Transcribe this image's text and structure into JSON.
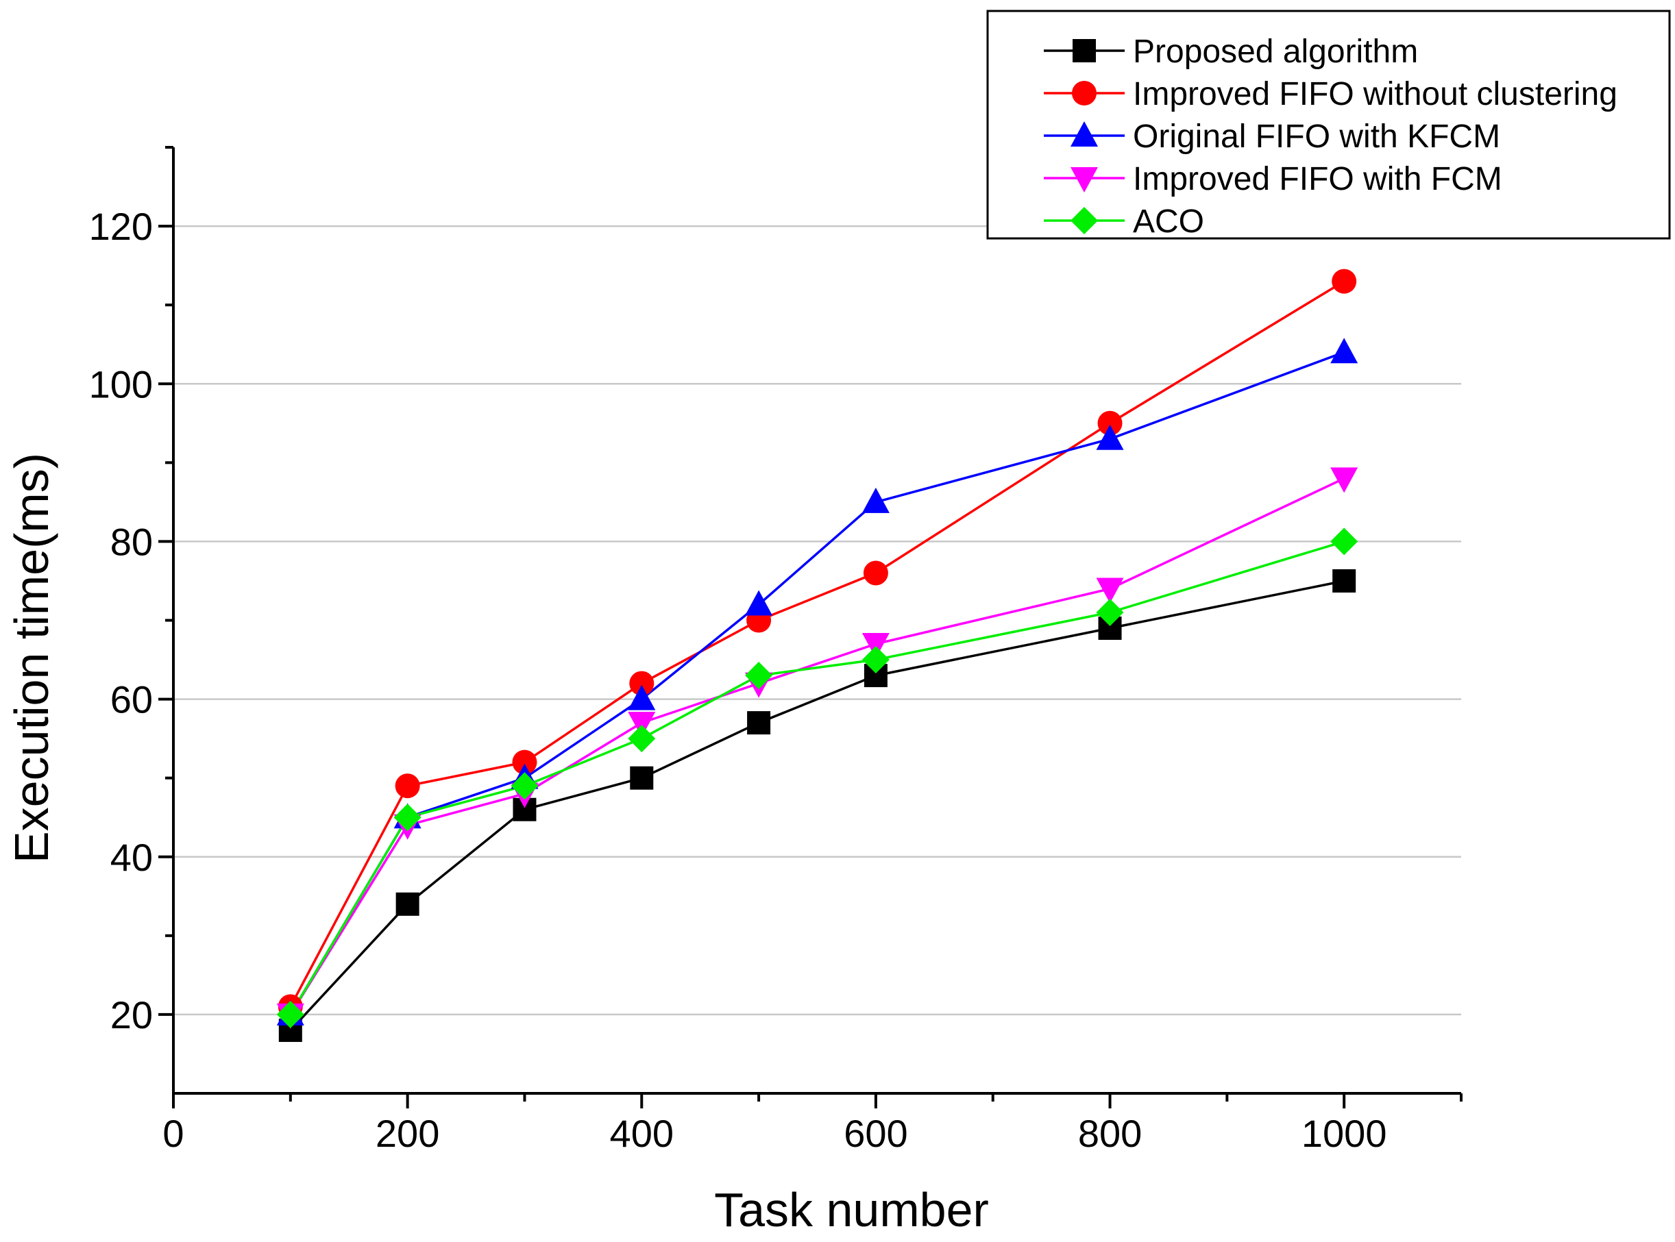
{
  "chart_data": {
    "type": "line",
    "title": "",
    "xlabel": "Task number",
    "ylabel": "Execution time(ms)",
    "xlim": [
      0,
      1100
    ],
    "ylim": [
      10,
      130
    ],
    "x_ticks": [
      0,
      200,
      400,
      600,
      800,
      1000
    ],
    "x_minor_ticks": [
      100,
      300,
      500,
      700,
      900,
      1100
    ],
    "y_ticks": [
      20,
      40,
      60,
      80,
      100,
      120
    ],
    "y_minor_ticks": [
      30,
      50,
      70,
      90,
      110,
      130
    ],
    "grid": "horizontal",
    "legend_position": "top-right",
    "x": [
      100,
      200,
      300,
      400,
      500,
      600,
      800,
      1000
    ],
    "series": [
      {
        "name": "Proposed algorithm",
        "color": "#000000",
        "marker": "square",
        "values": [
          18,
          34,
          46,
          50,
          57,
          63,
          69,
          75
        ]
      },
      {
        "name": "Improved FIFO without clustering",
        "color": "#ff0000",
        "marker": "circle",
        "values": [
          21,
          49,
          52,
          62,
          70,
          76,
          95,
          113
        ]
      },
      {
        "name": "Original FIFO with KFCM",
        "color": "#0000ff",
        "marker": "triangle-up",
        "values": [
          20,
          45,
          50,
          60,
          72,
          85,
          93,
          104
        ]
      },
      {
        "name": "Improved FIFO with FCM",
        "color": "#ff00ff",
        "marker": "triangle-down",
        "values": [
          20,
          44,
          48,
          57,
          62,
          67,
          74,
          88
        ]
      },
      {
        "name": "ACO",
        "color": "#00ee00",
        "marker": "diamond",
        "values": [
          20,
          45,
          49,
          55,
          63,
          65,
          71,
          80
        ]
      }
    ]
  }
}
